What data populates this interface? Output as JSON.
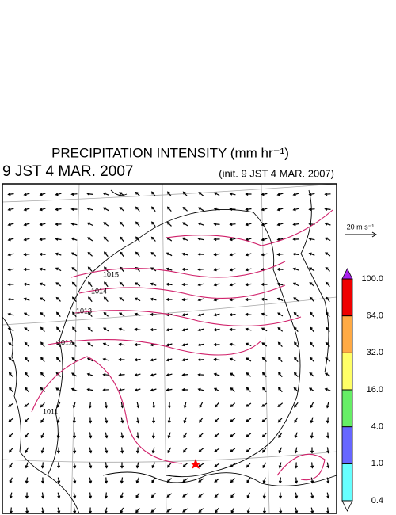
{
  "title": "PRECIPITATION INTENSITY (mm hr⁻¹)",
  "valid_time": "9 JST 4 MAR. 2007",
  "init_time": "(init. 9 JST 4 MAR. 2007)",
  "vector_reference": "20 m s⁻¹",
  "isobar_labels": [
    "1015",
    "1014",
    "1013",
    "1012",
    "1011"
  ],
  "colorbar": {
    "levels": [
      {
        "value": 0.4,
        "label": "0.4"
      },
      {
        "value": 1,
        "label": "1.0"
      },
      {
        "value": 4,
        "label": "4.0"
      },
      {
        "value": 16,
        "label": "16.0"
      },
      {
        "value": 32,
        "label": "32.0"
      },
      {
        "value": 64,
        "label": "64.0"
      },
      {
        "value": 100,
        "label": "100.0"
      }
    ],
    "colors": [
      "#66ffff",
      "#6666ff",
      "#66ee66",
      "#ffff66",
      "#ffaa44",
      "#ee0000"
    ],
    "under_color": "#ffffff",
    "over_color": "#aa22ee"
  }
}
